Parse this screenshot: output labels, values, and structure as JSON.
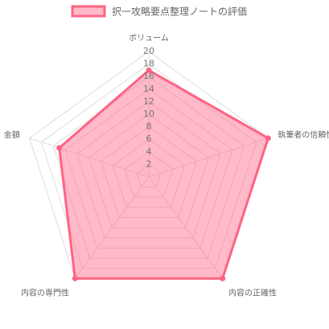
{
  "chart_data": {
    "type": "radar",
    "categories": [
      "ボリューム",
      "執筆者の信頼性",
      "内容の正確性",
      "内容の専門性",
      "金額"
    ],
    "series": [
      {
        "name": "択一攻略要点整理ノートの評価",
        "color": "#ff6384",
        "values": [
          17,
          20,
          20,
          20,
          15
        ]
      }
    ],
    "rlim": [
      0,
      20
    ],
    "rticks": [
      2,
      4,
      6,
      8,
      10,
      12,
      14,
      16,
      18,
      20
    ],
    "grid": true,
    "legend": "top"
  }
}
